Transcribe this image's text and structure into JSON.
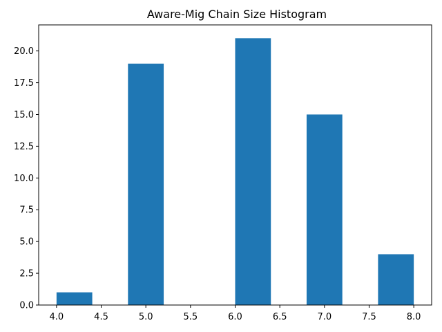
{
  "chart_data": {
    "type": "bar",
    "title": "Aware-Mig Chain Size Histogram",
    "xlabel": "",
    "ylabel": "",
    "bar_color": "#1f77b4",
    "bins": [
      {
        "x0": 4.0,
        "x1": 4.4,
        "value": 1
      },
      {
        "x0": 4.4,
        "x1": 4.8,
        "value": 0
      },
      {
        "x0": 4.8,
        "x1": 5.2,
        "value": 19
      },
      {
        "x0": 5.2,
        "x1": 5.6,
        "value": 0
      },
      {
        "x0": 5.6,
        "x1": 6.0,
        "value": 0
      },
      {
        "x0": 6.0,
        "x1": 6.4,
        "value": 21
      },
      {
        "x0": 6.4,
        "x1": 6.8,
        "value": 0
      },
      {
        "x0": 6.8,
        "x1": 7.2,
        "value": 15
      },
      {
        "x0": 7.2,
        "x1": 7.6,
        "value": 0
      },
      {
        "x0": 7.6,
        "x1": 8.0,
        "value": 4
      }
    ],
    "xlim": [
      3.8,
      8.2
    ],
    "ylim": [
      0,
      22.05
    ],
    "xticks": [
      "4.0",
      "4.5",
      "5.0",
      "5.5",
      "6.0",
      "6.5",
      "7.0",
      "7.5",
      "8.0"
    ],
    "yticks": [
      "0.0",
      "2.5",
      "5.0",
      "7.5",
      "10.0",
      "12.5",
      "15.0",
      "17.5",
      "20.0"
    ],
    "grid": false,
    "legend": "none"
  }
}
